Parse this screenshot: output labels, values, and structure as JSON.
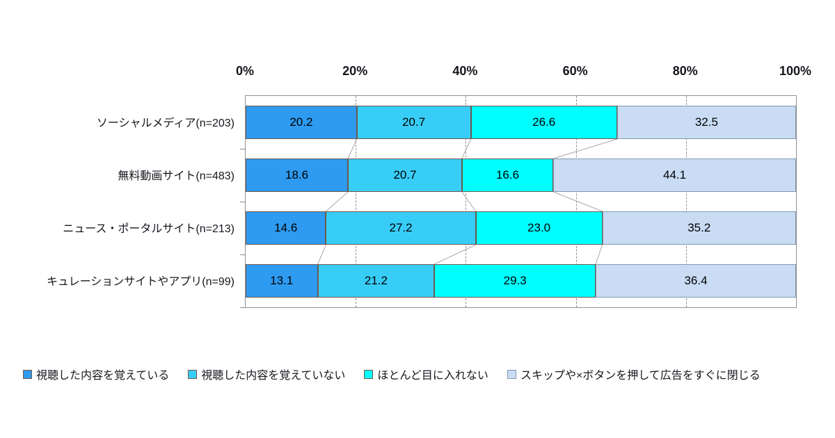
{
  "chart_data": {
    "type": "bar",
    "stacked": true,
    "orientation": "horizontal",
    "title": "",
    "categories": [
      "ソーシャルメディア(n=203)",
      "無料動画サイト(n=483)",
      "ニュース・ポータルサイト(n=213)",
      "キュレーションサイトやアプリ(n=99)"
    ],
    "series": [
      {
        "name": "視聴した内容を覚えている",
        "color": "#2e9af0",
        "border": "#6e584c",
        "values": [
          20.2,
          18.6,
          14.6,
          13.1
        ]
      },
      {
        "name": "視聴した内容を覚えていない",
        "color": "#38cdf7",
        "border": "#6e584c",
        "values": [
          20.7,
          20.7,
          27.2,
          21.2
        ]
      },
      {
        "name": "ほとんど目に入れない",
        "color": "#00ffff",
        "border": "#6e584c",
        "values": [
          26.6,
          16.6,
          23.0,
          29.3
        ]
      },
      {
        "name": "スキップや×ボタンを押して広告をすぐに閉じる",
        "color": "#c9dcf4",
        "border": "#8298b0",
        "values": [
          32.5,
          44.1,
          35.2,
          36.4
        ]
      }
    ],
    "x_axis": {
      "min": 0,
      "max": 100,
      "ticks": [
        "0%",
        "20%",
        "40%",
        "60%",
        "80%",
        "100%"
      ],
      "grid_percents": [
        20,
        40,
        60,
        80
      ]
    },
    "grid": true,
    "legend_position": "bottom",
    "value_label_format": "one_decimal",
    "colors": {
      "plot_border": "#909090",
      "gridline": "#8c8c8c",
      "connector": "#a9a9a9",
      "axis_text": "#16161e",
      "data_label": "#000000",
      "background": "#ffffff"
    }
  }
}
